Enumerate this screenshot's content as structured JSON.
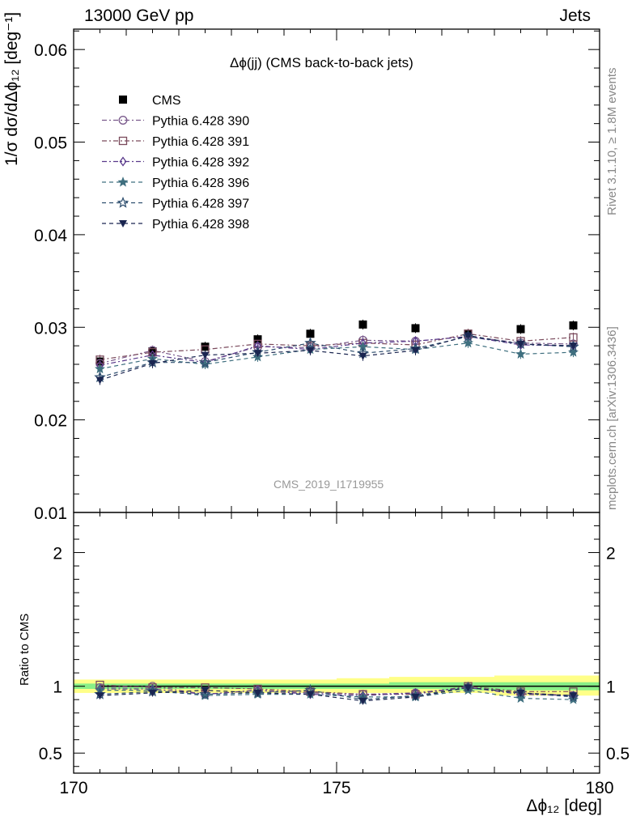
{
  "header": {
    "left": "13000 GeV pp",
    "right": "Jets"
  },
  "title": "Δϕ(jj) (CMS back-to-back jets)",
  "side_labels": {
    "rivet": "Rivet 3.1.10, ≥ 1.8M events",
    "mcplots": "mcplots.cern.ch [arXiv:1306.3436]"
  },
  "watermark": "CMS_2019_I1719955",
  "axis_labels": {
    "y_top": "1/σ dσ/dΔϕ₁₂ [deg⁻¹]",
    "y_bottom": "Ratio to CMS",
    "x": "Δϕ₁₂ [deg]"
  },
  "chart_data": [
    {
      "type": "scatter",
      "panel": "main",
      "title": "Δϕ(jj) (CMS back-to-back jets)",
      "xlabel": "Δϕ₁₂ [deg]",
      "ylabel": "1/σ dσ/dΔϕ₁₂ [deg⁻¹]",
      "xlim": [
        170,
        180
      ],
      "ylim": [
        0.01,
        0.0622
      ],
      "yticks": [
        0.01,
        0.02,
        0.03,
        0.04,
        0.05,
        0.06
      ],
      "ytick_labels": [
        "0.01",
        "0.02",
        "0.03",
        "0.04",
        "0.05",
        "0.06"
      ],
      "legend_position": "top-left",
      "x": [
        170.5,
        171.5,
        172.5,
        173.5,
        174.5,
        175.5,
        176.5,
        177.5,
        178.5,
        179.5
      ],
      "series": [
        {
          "name": "CMS",
          "color": "#000000",
          "marker": "square-filled",
          "line": "none",
          "values": [
            0.0263,
            0.0274,
            0.0279,
            0.0287,
            0.0293,
            0.0303,
            0.0299,
            0.0293,
            0.0298,
            0.0302
          ]
        },
        {
          "name": "Pythia 6.428 390",
          "color": "#7a5a8c",
          "marker": "circle-open",
          "line": "dashdot",
          "values": [
            0.0261,
            0.0275,
            0.0263,
            0.0279,
            0.0278,
            0.0286,
            0.0285,
            0.029,
            0.0283,
            0.0282
          ]
        },
        {
          "name": "Pythia 6.428 391",
          "color": "#7a4a5c",
          "marker": "square-open",
          "line": "dashdot",
          "values": [
            0.0265,
            0.0273,
            0.0276,
            0.0282,
            0.028,
            0.0283,
            0.0281,
            0.0293,
            0.0285,
            0.0289
          ]
        },
        {
          "name": "Pythia 6.428 392",
          "color": "#5a3a8c",
          "marker": "diamond-open",
          "line": "dashdot",
          "values": [
            0.0259,
            0.027,
            0.0262,
            0.028,
            0.0276,
            0.0283,
            0.0285,
            0.029,
            0.0281,
            0.028
          ]
        },
        {
          "name": "Pythia 6.428 396",
          "color": "#3f6f7f",
          "marker": "star-filled",
          "line": "dashed",
          "values": [
            0.0255,
            0.0266,
            0.026,
            0.0268,
            0.0276,
            0.0279,
            0.0276,
            0.0283,
            0.0271,
            0.0273
          ]
        },
        {
          "name": "Pythia 6.428 397",
          "color": "#2f4f6f",
          "marker": "star-open",
          "line": "dashed",
          "values": [
            0.0246,
            0.0262,
            0.0262,
            0.0273,
            0.0283,
            0.0272,
            0.0277,
            0.029,
            0.0282,
            0.0279
          ]
        },
        {
          "name": "Pythia 6.428 398",
          "color": "#1a2550",
          "marker": "triangle-down-filled",
          "line": "dashed",
          "values": [
            0.0243,
            0.0261,
            0.027,
            0.0272,
            0.0275,
            0.0269,
            0.0275,
            0.0291,
            0.0282,
            0.028
          ]
        }
      ]
    },
    {
      "type": "scatter",
      "panel": "ratio",
      "xlabel": "Δϕ₁₂ [deg]",
      "ylabel": "Ratio to CMS",
      "xlim": [
        170,
        180
      ],
      "ylim": [
        0.35,
        2.3
      ],
      "yticks": [
        0.5,
        1,
        2
      ],
      "ytick_labels": [
        "0.5",
        "1",
        "2"
      ],
      "xticks": [
        170,
        175,
        180
      ],
      "xtick_labels": [
        "170",
        "175",
        "180"
      ],
      "reference_line": 1,
      "bands": {
        "yellow": {
          "color": "#ffff88",
          "lower": [
            0.95,
            0.95,
            0.95,
            0.95,
            0.95,
            0.95,
            0.95,
            0.95,
            0.93,
            0.93
          ],
          "upper": [
            1.05,
            1.05,
            1.05,
            1.05,
            1.05,
            1.06,
            1.07,
            1.07,
            1.08,
            1.08
          ]
        },
        "green": {
          "color": "#88f088",
          "lower": [
            0.98,
            0.98,
            0.98,
            0.98,
            0.98,
            0.98,
            0.98,
            0.97,
            0.97,
            0.97
          ],
          "upper": [
            1.02,
            1.02,
            1.02,
            1.02,
            1.02,
            1.02,
            1.03,
            1.03,
            1.03,
            1.03
          ]
        }
      },
      "x": [
        170.5,
        171.5,
        172.5,
        173.5,
        174.5,
        175.5,
        176.5,
        177.5,
        178.5,
        179.5
      ],
      "series": [
        {
          "name": "Pythia 6.428 390",
          "values": [
            0.99,
            1.0,
            0.94,
            0.97,
            0.95,
            0.94,
            0.95,
            0.99,
            0.95,
            0.93
          ]
        },
        {
          "name": "Pythia 6.428 391",
          "values": [
            1.01,
            0.99,
            0.99,
            0.98,
            0.96,
            0.94,
            0.94,
            1.0,
            0.96,
            0.96
          ]
        },
        {
          "name": "Pythia 6.428 392",
          "values": [
            0.98,
            0.98,
            0.94,
            0.97,
            0.94,
            0.93,
            0.95,
            0.99,
            0.94,
            0.93
          ]
        },
        {
          "name": "Pythia 6.428 396",
          "values": [
            0.97,
            0.97,
            0.93,
            0.94,
            0.94,
            0.92,
            0.92,
            0.97,
            0.91,
            0.9
          ]
        },
        {
          "name": "Pythia 6.428 397",
          "values": [
            0.94,
            0.96,
            0.94,
            0.95,
            0.97,
            0.9,
            0.93,
            0.99,
            0.95,
            0.92
          ]
        },
        {
          "name": "Pythia 6.428 398",
          "values": [
            0.93,
            0.95,
            0.97,
            0.95,
            0.94,
            0.89,
            0.92,
            0.99,
            0.95,
            0.93
          ]
        }
      ]
    }
  ]
}
